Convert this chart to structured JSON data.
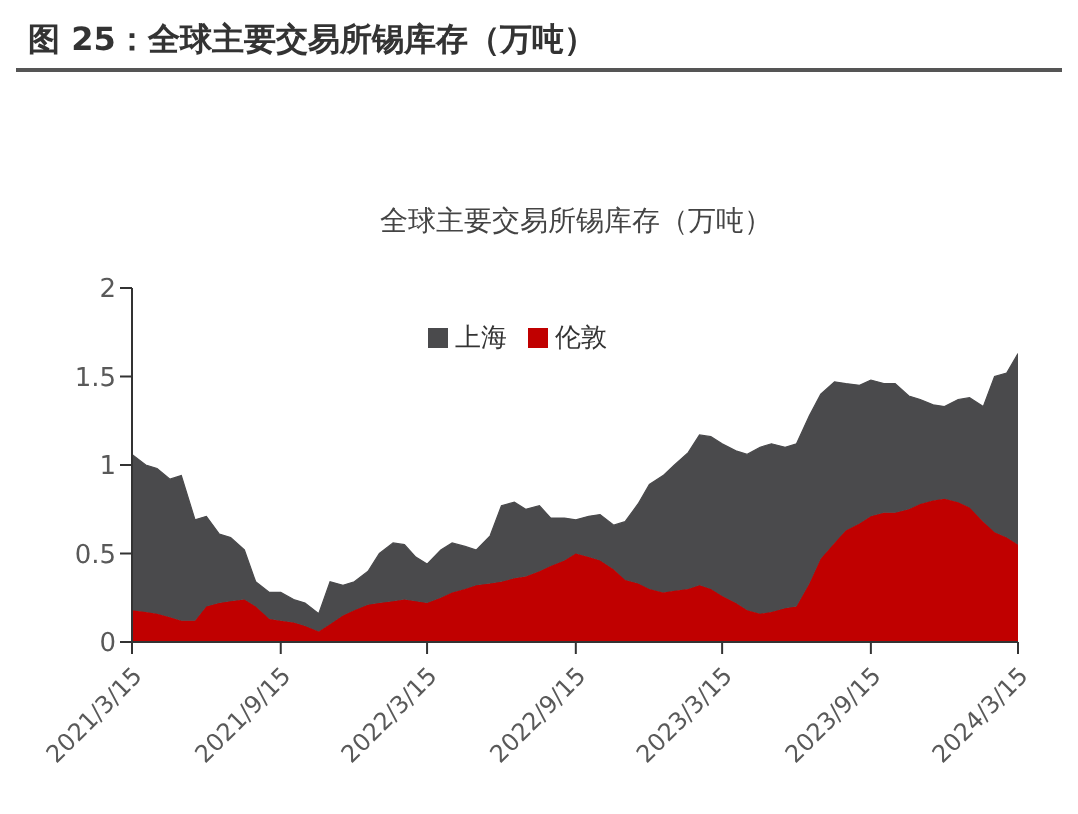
{
  "chart_data": {
    "type": "area",
    "title": "图 25：全球主要交易所锡库存（万吨）",
    "subtitle": "全球主要交易所锡库存（万吨）",
    "stacked": true,
    "legend": "top",
    "grid": false,
    "x": [
      "2021-03-15",
      "2021-04-01",
      "2021-04-15",
      "2021-05-01",
      "2021-05-15",
      "2021-06-01",
      "2021-06-15",
      "2021-07-01",
      "2021-07-15",
      "2021-08-01",
      "2021-08-15",
      "2021-09-01",
      "2021-09-15",
      "2021-10-01",
      "2021-10-15",
      "2021-11-01",
      "2021-11-15",
      "2021-12-01",
      "2021-12-15",
      "2022-01-01",
      "2022-01-15",
      "2022-02-01",
      "2022-02-15",
      "2022-03-01",
      "2022-03-15",
      "2022-04-01",
      "2022-04-15",
      "2022-05-01",
      "2022-05-15",
      "2022-06-01",
      "2022-06-15",
      "2022-07-01",
      "2022-07-15",
      "2022-08-01",
      "2022-08-15",
      "2022-09-01",
      "2022-09-15",
      "2022-10-01",
      "2022-10-15",
      "2022-11-01",
      "2022-11-15",
      "2022-12-01",
      "2022-12-15",
      "2023-01-01",
      "2023-01-15",
      "2023-02-01",
      "2023-02-15",
      "2023-03-01",
      "2023-03-15",
      "2023-04-01",
      "2023-04-15",
      "2023-05-01",
      "2023-05-15",
      "2023-06-01",
      "2023-06-15",
      "2023-07-01",
      "2023-07-15",
      "2023-08-01",
      "2023-08-15",
      "2023-09-01",
      "2023-09-15",
      "2023-10-01",
      "2023-10-15",
      "2023-11-01",
      "2023-11-15",
      "2023-12-01",
      "2023-12-15",
      "2024-01-01",
      "2024-01-15",
      "2024-02-01",
      "2024-02-15",
      "2024-03-01",
      "2024-03-15"
    ],
    "series": [
      {
        "name": "伦敦",
        "color": "#c00000",
        "values": [
          0.18,
          0.17,
          0.16,
          0.14,
          0.12,
          0.12,
          0.2,
          0.22,
          0.23,
          0.24,
          0.2,
          0.13,
          0.12,
          0.11,
          0.09,
          0.06,
          0.1,
          0.15,
          0.18,
          0.21,
          0.22,
          0.23,
          0.24,
          0.23,
          0.22,
          0.25,
          0.28,
          0.3,
          0.32,
          0.33,
          0.34,
          0.36,
          0.37,
          0.4,
          0.43,
          0.46,
          0.5,
          0.48,
          0.46,
          0.41,
          0.35,
          0.33,
          0.3,
          0.28,
          0.29,
          0.3,
          0.32,
          0.3,
          0.26,
          0.22,
          0.18,
          0.16,
          0.17,
          0.19,
          0.2,
          0.33,
          0.47,
          0.56,
          0.63,
          0.67,
          0.71,
          0.73,
          0.73,
          0.75,
          0.78,
          0.8,
          0.81,
          0.79,
          0.76,
          0.68,
          0.62,
          0.59,
          0.55
        ]
      },
      {
        "name": "上海",
        "color": "#4a4a4c",
        "values": [
          0.88,
          0.83,
          0.82,
          0.78,
          0.82,
          0.57,
          0.51,
          0.39,
          0.36,
          0.28,
          0.14,
          0.15,
          0.16,
          0.13,
          0.13,
          0.1,
          0.24,
          0.17,
          0.16,
          0.19,
          0.28,
          0.33,
          0.31,
          0.25,
          0.22,
          0.27,
          0.28,
          0.24,
          0.2,
          0.27,
          0.43,
          0.43,
          0.38,
          0.37,
          0.27,
          0.24,
          0.19,
          0.23,
          0.26,
          0.25,
          0.33,
          0.45,
          0.59,
          0.66,
          0.71,
          0.77,
          0.85,
          0.86,
          0.86,
          0.86,
          0.88,
          0.94,
          0.95,
          0.91,
          0.92,
          0.95,
          0.93,
          0.91,
          0.83,
          0.78,
          0.77,
          0.73,
          0.73,
          0.64,
          0.59,
          0.54,
          0.52,
          0.58,
          0.62,
          0.65,
          0.88,
          0.93,
          1.08
        ]
      }
    ],
    "xlim": [
      "2021-03-15",
      "2024-03-15"
    ],
    "xticks": [
      {
        "value": "2021-03-15",
        "label": "2021/3/15"
      },
      {
        "value": "2021-09-15",
        "label": "2021/9/15"
      },
      {
        "value": "2022-03-15",
        "label": "2022/3/15"
      },
      {
        "value": "2022-09-15",
        "label": "2022/9/15"
      },
      {
        "value": "2023-03-15",
        "label": "2023/3/15"
      },
      {
        "value": "2023-09-15",
        "label": "2023/9/15"
      },
      {
        "value": "2024-03-15",
        "label": "2024/3/15"
      }
    ],
    "ylim": [
      0,
      2
    ],
    "yticks": [
      0,
      0.5,
      1,
      1.5,
      2
    ]
  }
}
